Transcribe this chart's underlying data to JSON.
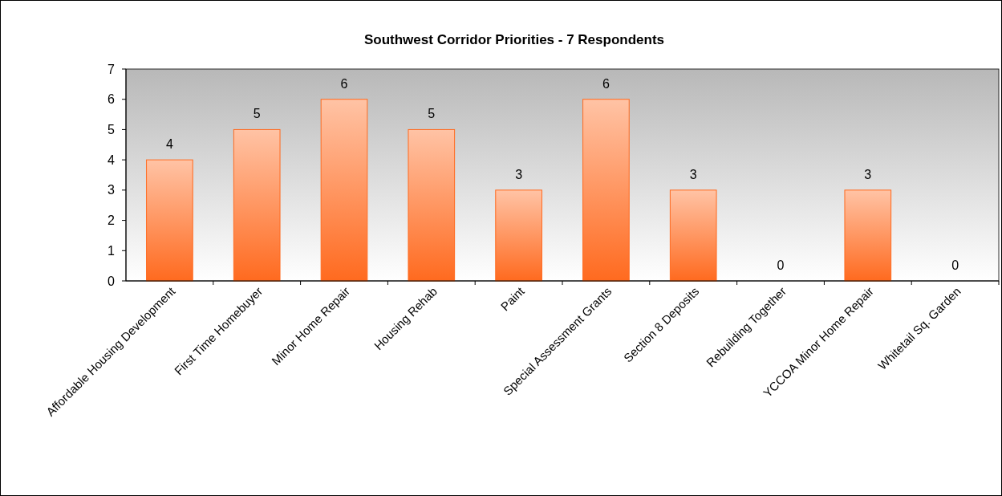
{
  "chart_data": {
    "type": "bar",
    "title": "Southwest Corridor Priorities - 7 Respondents",
    "categories": [
      "Affordable Housing Development",
      "First Time Homebuyer",
      "Minor Home Repair",
      "Housing Rehab",
      "Paint",
      "Special Assessment Grants",
      "Section 8 Deposits",
      "Rebuilding Together",
      "YCCOA Minor Home Repair",
      "Whitetail Sq. Garden"
    ],
    "values": [
      4,
      5,
      6,
      5,
      3,
      6,
      3,
      0,
      3,
      0
    ],
    "color": "#ff6a1f",
    "ylim": [
      0,
      7
    ],
    "yticks": [
      0,
      1,
      2,
      3,
      4,
      5,
      6,
      7
    ],
    "grid": false,
    "data_labels": true
  }
}
